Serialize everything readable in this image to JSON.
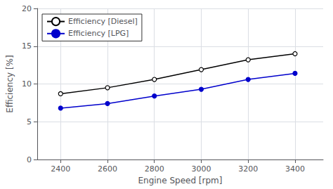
{
  "chart_data": {
    "type": "line",
    "x": [
      2400,
      2600,
      2800,
      3000,
      3200,
      3400
    ],
    "series": [
      {
        "name": "Efficiency [Diesel]",
        "color": "#000000",
        "marker": "open_circle",
        "values": [
          8.7,
          9.5,
          10.6,
          11.9,
          13.2,
          14.0
        ]
      },
      {
        "name": "Efficiency [LPG]",
        "color": "#0000cc",
        "marker": "circle",
        "values": [
          6.8,
          7.4,
          8.4,
          9.3,
          10.6,
          11.4
        ]
      }
    ],
    "xlabel": "Engine Speed [rpm]",
    "ylabel": "Efficiency [%]",
    "xlim": [
      2300,
      3520
    ],
    "ylim": [
      0,
      20
    ],
    "xticks": [
      2400,
      2600,
      2800,
      3000,
      3200,
      3400
    ],
    "yticks": [
      0,
      5,
      10,
      15,
      20
    ],
    "grid": true,
    "legend": "upper left"
  }
}
